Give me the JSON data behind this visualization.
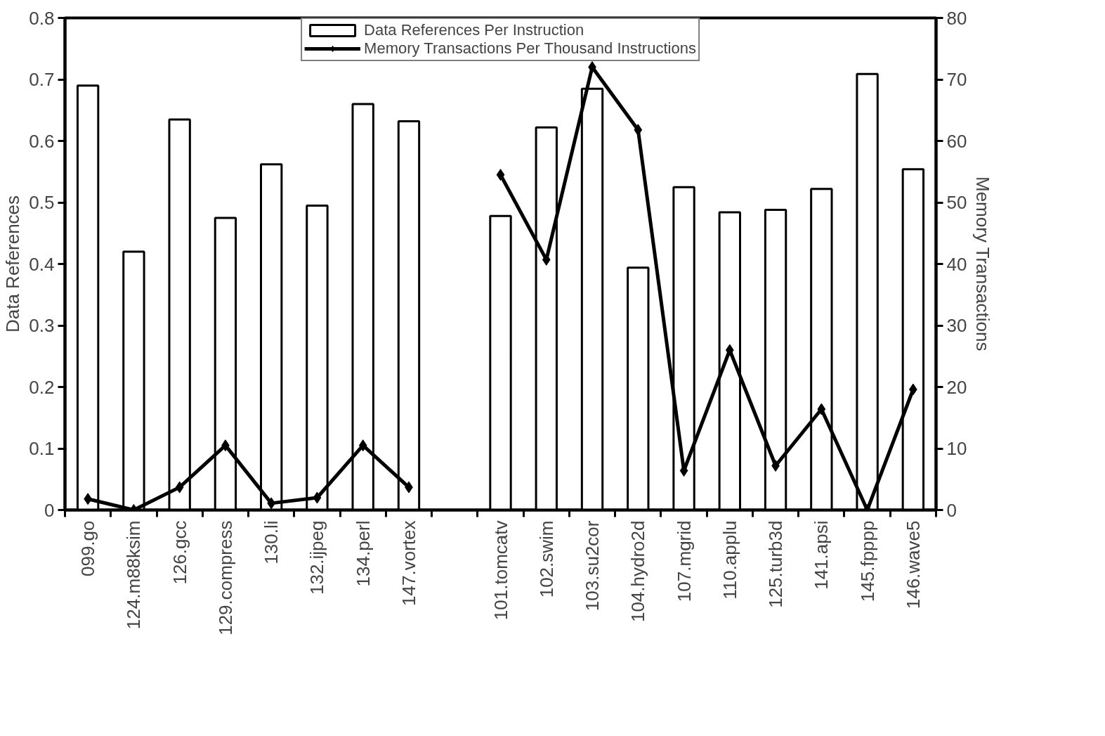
{
  "chart_data": {
    "type": "bar",
    "categories": [
      "099.go",
      "124.m88ksim",
      "126.gcc",
      "129.compress",
      "130.li",
      "132.ijpeg",
      "134.perl",
      "147.vortex",
      null,
      "101.tomcatv",
      "102.swim",
      "103.su2cor",
      "104.hydro2d",
      "107.mgrid",
      "110.applu",
      "125.turb3d",
      "141.apsi",
      "145.fpppp",
      "146.wave5"
    ],
    "series": [
      {
        "name": "Data References Per Instruction",
        "color": "#ffffff",
        "values": [
          0.69,
          0.42,
          0.635,
          0.475,
          0.562,
          0.495,
          0.66,
          0.632,
          null,
          0.478,
          0.622,
          0.685,
          0.394,
          0.525,
          0.484,
          0.488,
          0.522,
          0.709,
          0.554
        ]
      },
      {
        "name": "Memory Transactions Per Thousand Instructions",
        "type": "line",
        "axis": "y2",
        "color": "#000000",
        "marker": "diamond",
        "values": [
          1.8,
          0,
          3.7,
          10.5,
          1.1,
          2,
          10.5,
          3.7,
          null,
          54.5,
          40.7,
          72,
          61.8,
          6.4,
          26,
          7.2,
          16.4,
          0,
          19.6
        ]
      }
    ],
    "ylabel": "Data References",
    "y2label": "Memory Transactions",
    "ylim": [
      0,
      0.8
    ],
    "yticks": [
      0,
      0.1,
      0.2,
      0.3,
      0.4,
      0.5,
      0.6,
      0.7,
      0.8
    ],
    "y2lim": [
      0,
      80
    ],
    "y2ticks": [
      0,
      10,
      20,
      30,
      40,
      50,
      60,
      70,
      80
    ],
    "legend": "top",
    "grid": false
  }
}
